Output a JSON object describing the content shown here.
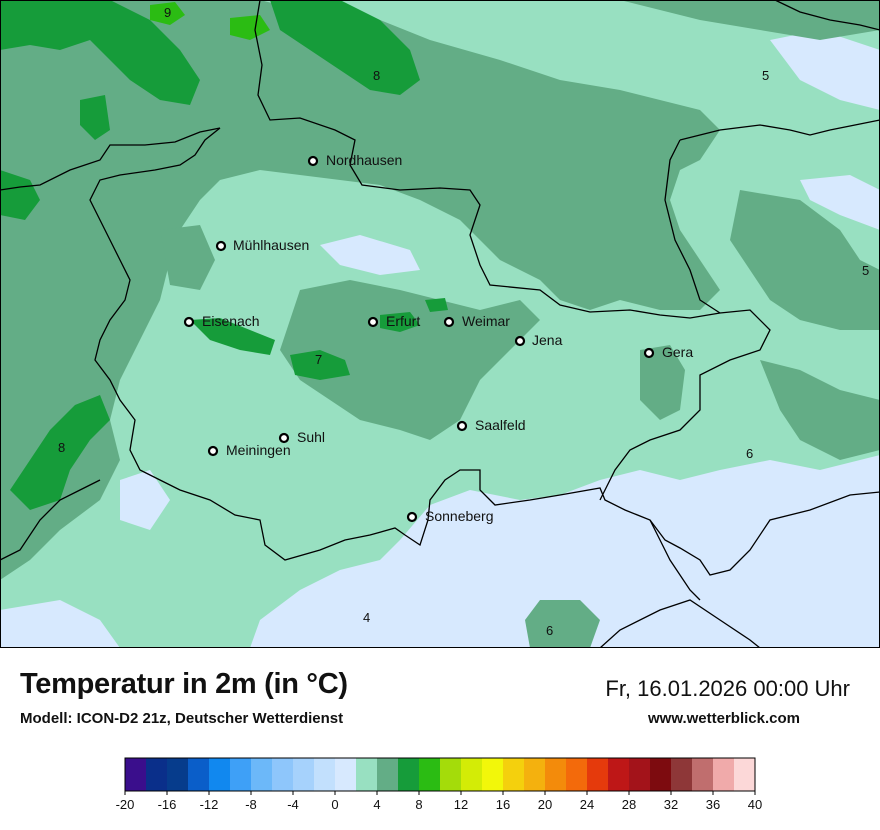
{
  "title": "Temperatur in 2m (in °C)",
  "subtitle": "Modell: ICON-D2 21z, Deutscher Wetterdienst",
  "datetime": "Fr, 16.01.2026 00:00 Uhr",
  "website": "www.wetterblick.com",
  "cities": [
    {
      "name": "Nordhausen"
    },
    {
      "name": "Mühlhausen"
    },
    {
      "name": "Eisenach"
    },
    {
      "name": "Erfurt"
    },
    {
      "name": "Weimar"
    },
    {
      "name": "Jena"
    },
    {
      "name": "Gera"
    },
    {
      "name": "Saalfeld"
    },
    {
      "name": "Suhl"
    },
    {
      "name": "Meiningen"
    },
    {
      "name": "Sonneberg"
    }
  ],
  "contour_labels": [
    "9",
    "8",
    "5",
    "5",
    "7",
    "8",
    "6",
    "6",
    "4"
  ],
  "colorbar": {
    "ticks": [
      "-20",
      "-16",
      "-12",
      "-8",
      "-4",
      "0",
      "4",
      "8",
      "12",
      "16",
      "20",
      "24",
      "28",
      "32",
      "36",
      "40"
    ],
    "colors": [
      "#3a0e8c",
      "#0a2f8a",
      "#063c8c",
      "#0a5ec9",
      "#1188ef",
      "#3ea0f7",
      "#6cb8f9",
      "#8ec6fb",
      "#a6d2fc",
      "#c2e0fd",
      "#d7e9fe",
      "#98e0c1",
      "#63ad86",
      "#169c3a",
      "#2bbc13",
      "#a4dc0a",
      "#d3ec06",
      "#f2f70a",
      "#f4d00d",
      "#f4b10e",
      "#f38b0b",
      "#f36a0b",
      "#e53a0c",
      "#be1717",
      "#a3131a",
      "#7d0b0f",
      "#8e3738",
      "#c06e6e",
      "#f0aaaa",
      "#fcd8d8"
    ]
  },
  "legend_colors": {
    "t4_6": "#98e0c1",
    "t6_8": "#63ad86",
    "t8_10": "#169c3a",
    "t10_12": "#2bbc13",
    "t2_4": "#d7e9fe"
  }
}
